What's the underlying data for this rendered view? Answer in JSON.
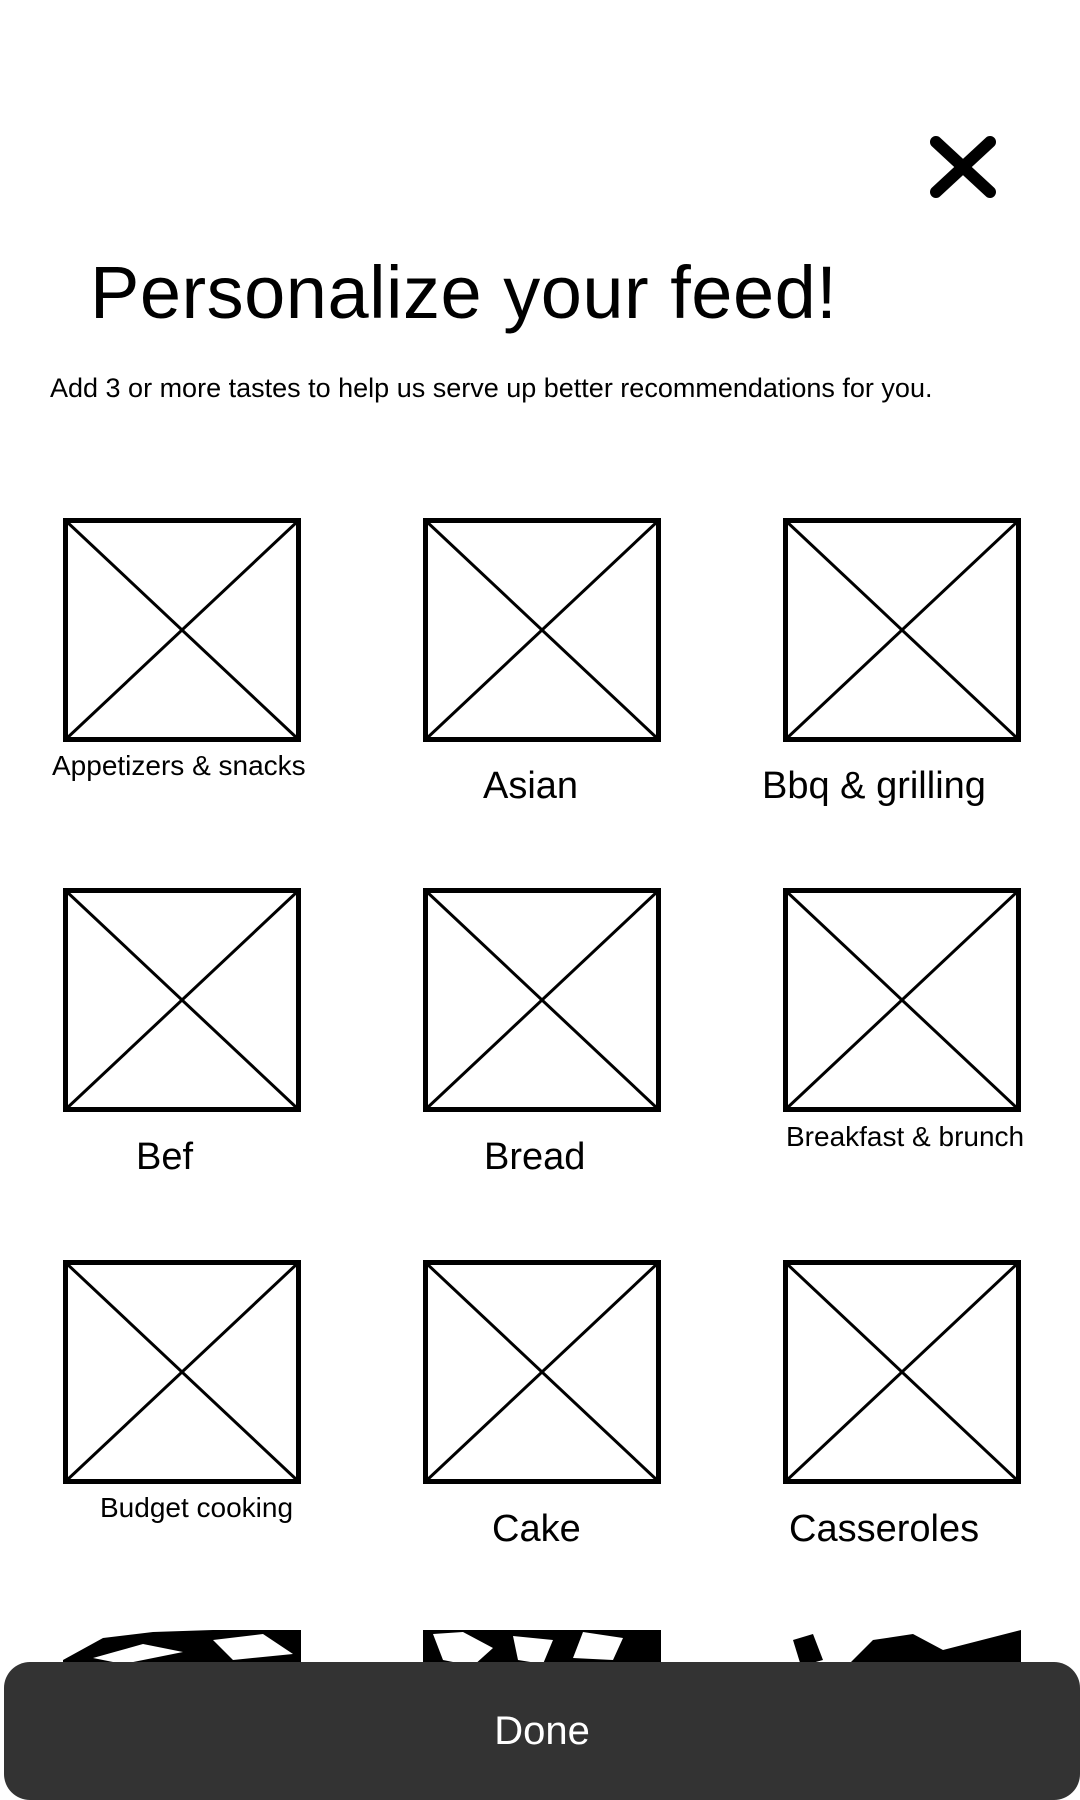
{
  "header": {
    "close_icon": "close-x-icon",
    "title": "Personalize your feed!",
    "subtitle": "Add 3 or more tastes to help us serve up better recommendations for you."
  },
  "tastes": [
    {
      "label": "Appetizers & snacks",
      "icon": "image-placeholder-icon"
    },
    {
      "label": "Asian",
      "icon": "image-placeholder-icon"
    },
    {
      "label": "Bbq & grilling",
      "icon": "image-placeholder-icon"
    },
    {
      "label": "Bef",
      "icon": "image-placeholder-icon"
    },
    {
      "label": "Bread",
      "icon": "image-placeholder-icon"
    },
    {
      "label": "Breakfast & brunch",
      "icon": "image-placeholder-icon"
    },
    {
      "label": "Budget cooking",
      "icon": "image-placeholder-icon"
    },
    {
      "label": "Cake",
      "icon": "image-placeholder-icon"
    },
    {
      "label": "Casseroles",
      "icon": "image-placeholder-icon"
    }
  ],
  "footer": {
    "done_label": "Done"
  },
  "colors": {
    "background": "#ffffff",
    "button_bg": "#333333",
    "button_text": "#ffffff"
  }
}
